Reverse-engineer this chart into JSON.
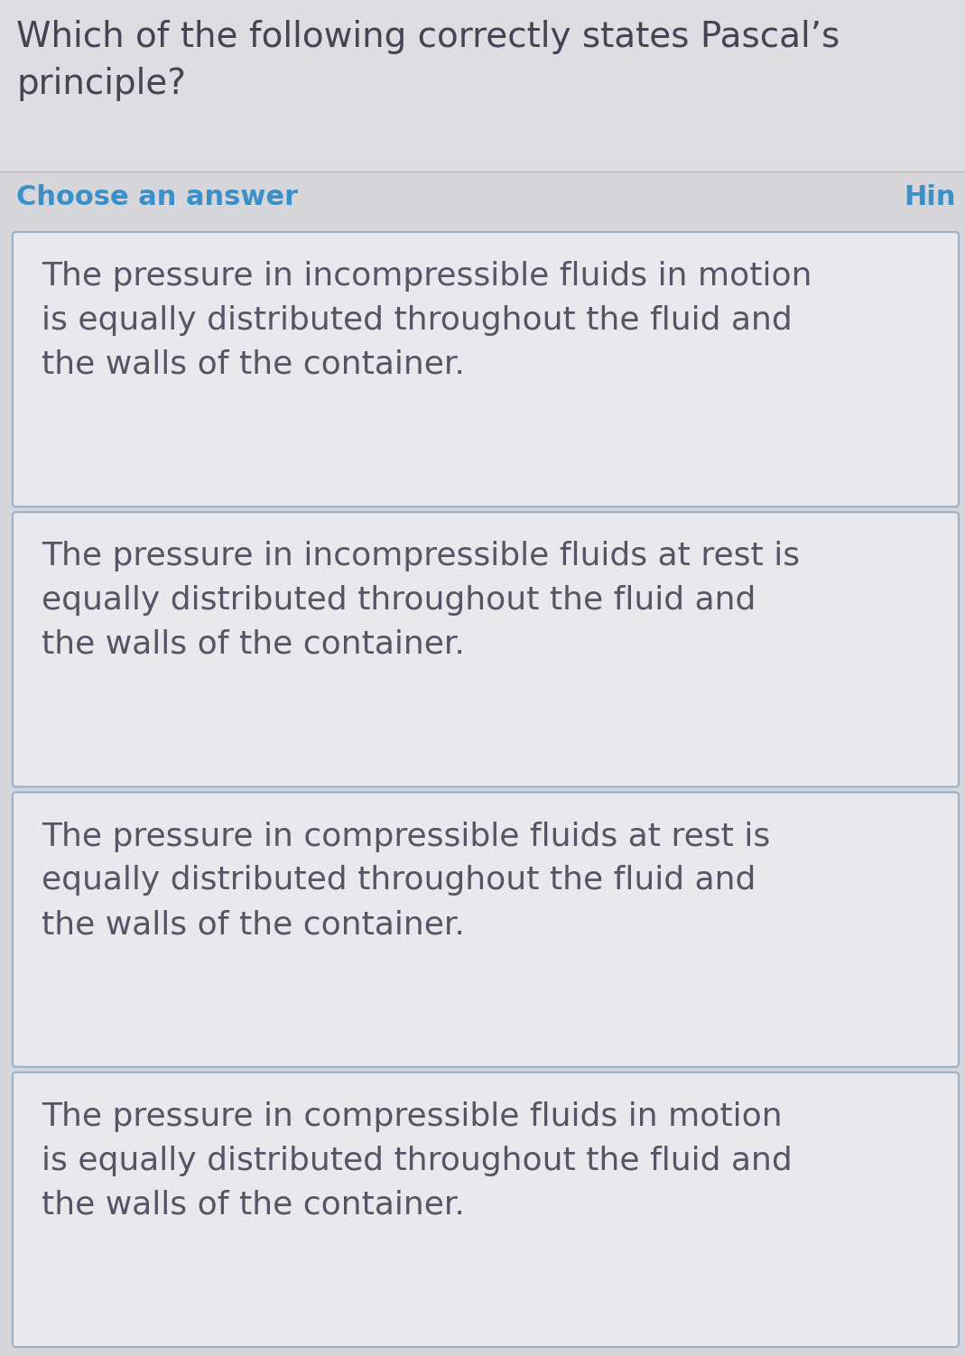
{
  "title_text": "Which of the following correctly states Pascal’s\nprinciple?",
  "choose_label": "Choose an answer",
  "hint_label": "Hin",
  "background_color": "#dddde2",
  "title_bg_color": "#dddde2",
  "section_bg_color": "#d5d5da",
  "card_bg_color": "#e9e9ed",
  "card_border_color": "#9ab0c8",
  "title_text_color": "#444455",
  "choose_text_color": "#3a90c8",
  "hint_text_color": "#3a90c8",
  "card_text_color": "#555566",
  "answers": [
    "The pressure in incompressible fluids in motion\nis equally distributed throughout the fluid and\nthe walls of the container.",
    "The pressure in incompressible fluids at rest is\nequally distributed throughout the fluid and\nthe walls of the container.",
    "The pressure in compressible fluids at rest is\nequally distributed throughout the fluid and\nthe walls of the container.",
    "The pressure in compressible fluids in motion\nis equally distributed throughout the fluid and\nthe walls of the container."
  ],
  "title_fontsize": 28,
  "choose_fontsize": 22,
  "card_fontsize": 26,
  "fig_width": 10.69,
  "fig_height": 15.02
}
